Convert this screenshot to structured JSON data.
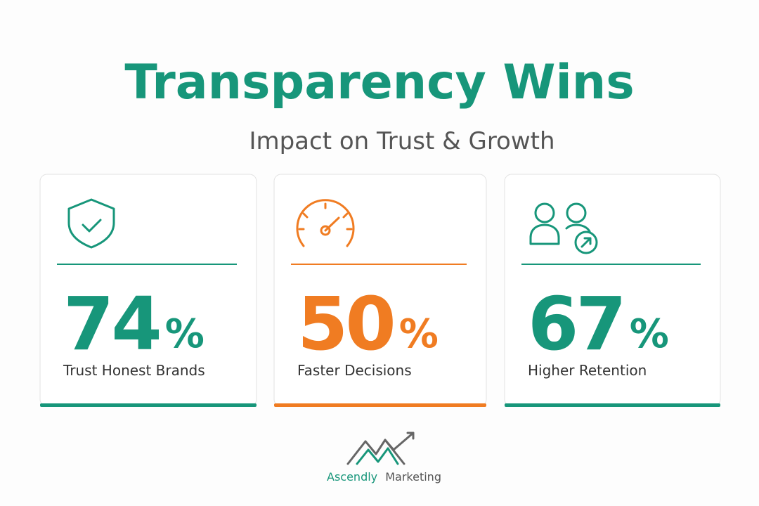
{
  "header": {
    "title": "Transparency Wins",
    "subtitle": "Impact on Trust & Growth"
  },
  "cards": [
    {
      "value": 74,
      "unit": "%",
      "label": "Trust Honest Brands",
      "color": "#17967a"
    },
    {
      "value": 50,
      "unit": "%",
      "label": "Faster Decisions",
      "color": "#f07c22"
    },
    {
      "value": 67,
      "unit": "%",
      "label": "Higher Retention",
      "color": "#17967a"
    }
  ],
  "brand": {
    "name": "Ascendly",
    "suffix": "Marketing"
  }
}
